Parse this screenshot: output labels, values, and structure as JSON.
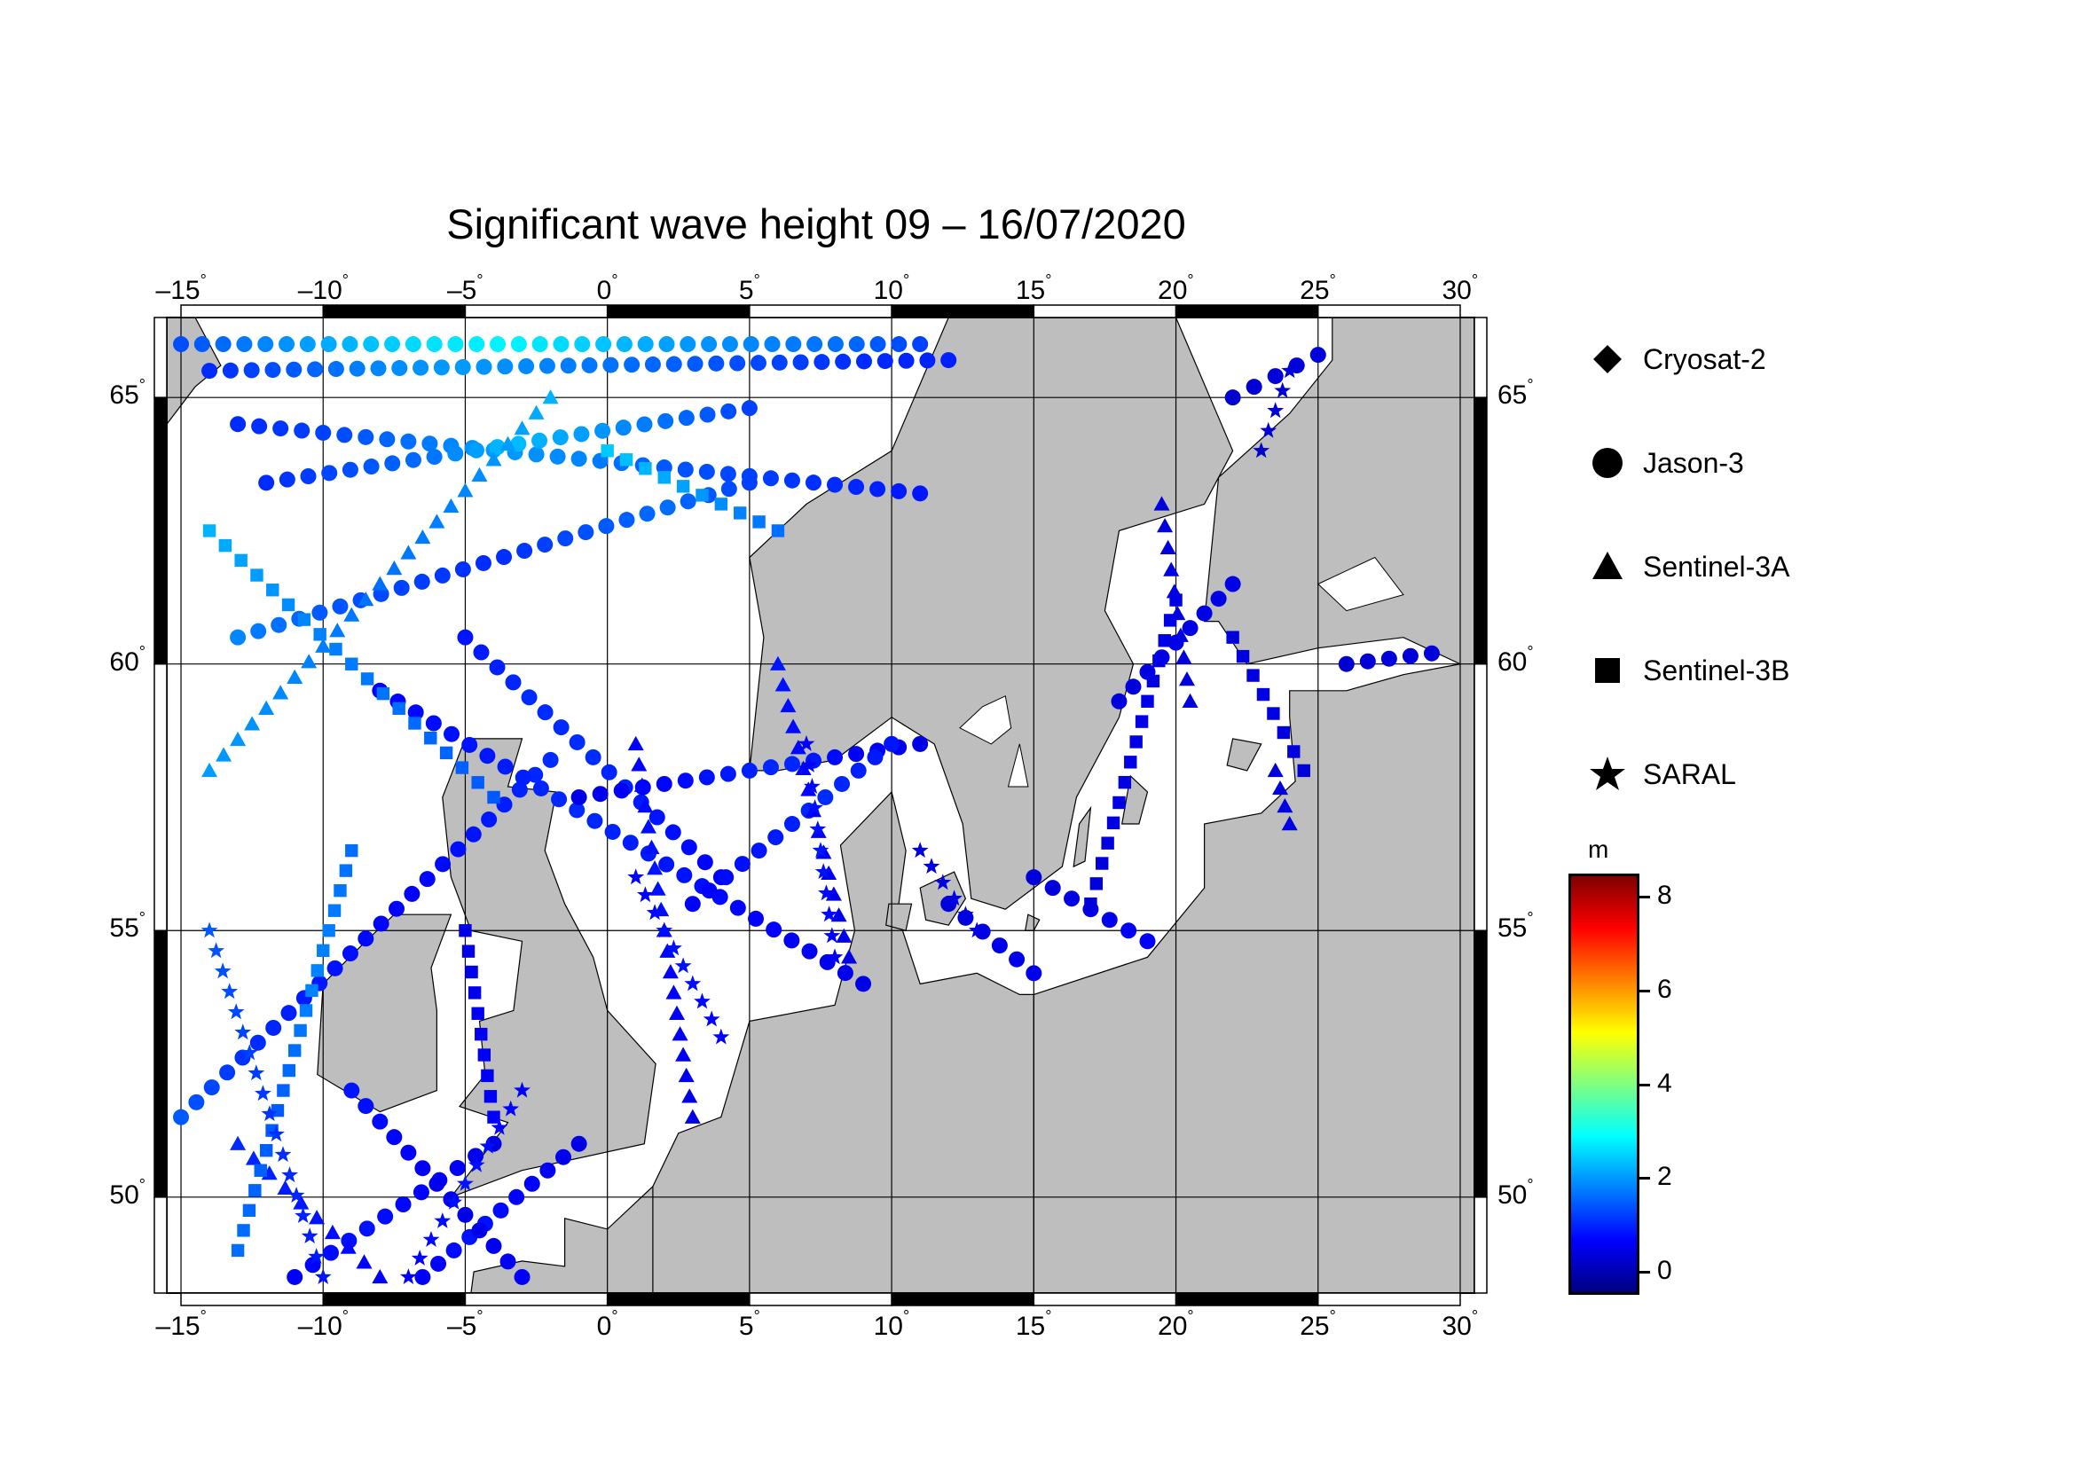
{
  "title": "Significant wave height 09 – 16/07/2020",
  "map": {
    "lon_range": [
      -15.5,
      30.5
    ],
    "lat_range": [
      48.2,
      66.5
    ],
    "top_lon_ticks": [
      "–15",
      "–10",
      "–5",
      "0",
      "5",
      "10",
      "15",
      "20",
      "25",
      "30"
    ],
    "bottom_lon_ticks": [
      "–15",
      "–10",
      "–5",
      "0",
      "5",
      "10",
      "15",
      "20",
      "25",
      "30"
    ],
    "lat_ticks": [
      "65",
      "60",
      "55",
      "50"
    ],
    "land_color": "#bebebe",
    "sea_color": "#ffffff",
    "grid_color": "#000000"
  },
  "legend": {
    "items": [
      {
        "label": "Cryosat-2",
        "icon": "diamond-icon"
      },
      {
        "label": "Jason-3",
        "icon": "circle-icon"
      },
      {
        "label": "Sentinel-3A",
        "icon": "triangle-icon"
      },
      {
        "label": "Sentinel-3B",
        "icon": "square-icon"
      },
      {
        "label": "SARAL",
        "icon": "star-icon"
      }
    ]
  },
  "colorbar": {
    "unit": "m",
    "range": [
      -0.5,
      8.5
    ],
    "ticks": [
      "8",
      "6",
      "4",
      "2",
      "0"
    ],
    "tick_values": [
      8,
      6,
      4,
      2,
      0
    ],
    "colors": [
      "#000080",
      "#0000ff",
      "#0080ff",
      "#00ffff",
      "#80ff80",
      "#ffff00",
      "#ff8000",
      "#ff0000",
      "#800000"
    ]
  },
  "chart_data": {
    "type": "scatter",
    "title": "Significant wave height 09 – 16/07/2020",
    "xlabel": "",
    "ylabel": "",
    "x_range": [
      -15.5,
      30.5
    ],
    "y_range": [
      48.2,
      66.5
    ],
    "value_unit": "m",
    "series": [
      {
        "name": "Jason-3",
        "marker": "circle",
        "tracks": [
          {
            "from": [
              -15,
              66
            ],
            "to": [
              11,
              66
            ],
            "hs": [
              1.3,
              1.8,
              2.2,
              2.6,
              2.8,
              2.4,
              2.0,
              1.8,
              1.6,
              1.2
            ]
          },
          {
            "from": [
              -14,
              65.5
            ],
            "to": [
              12,
              65.7
            ],
            "hs": [
              1.0,
              1.4,
              1.8,
              2.0,
              1.8,
              1.6,
              1.4,
              1.2,
              1.0,
              0.9
            ]
          },
          {
            "from": [
              -13,
              64.5
            ],
            "to": [
              11,
              63.2
            ],
            "hs": [
              1.0,
              1.2,
              1.6,
              2.0,
              1.8,
              1.4,
              1.2,
              1.0,
              0.8
            ]
          },
          {
            "from": [
              -12,
              63.4
            ],
            "to": [
              5,
              64.8
            ],
            "hs": [
              1.0,
              1.3,
              1.6,
              2.3,
              2.0,
              1.6,
              1.2
            ]
          },
          {
            "from": [
              -13,
              60.5
            ],
            "to": [
              5,
              63.4
            ],
            "hs": [
              1.8,
              1.4,
              1.2,
              1.0,
              1.3,
              1.6,
              1.2
            ]
          },
          {
            "from": [
              -15,
              51.5
            ],
            "to": [
              -2,
              58.2
            ],
            "hs": [
              1.4,
              1.0,
              0.8,
              0.6,
              0.8,
              1.0
            ]
          },
          {
            "from": [
              -8,
              59.5
            ],
            "to": [
              9,
              54
            ],
            "hs": [
              0.6,
              0.8,
              1.0,
              0.8,
              0.6,
              0.4
            ]
          },
          {
            "from": [
              -5,
              60.5
            ],
            "to": [
              4,
              56
            ],
            "hs": [
              0.8,
              1.0,
              1.0,
              0.8,
              0.6
            ]
          },
          {
            "from": [
              -1,
              57.5
            ],
            "to": [
              11,
              58.5
            ],
            "hs": [
              0.4,
              0.6,
              0.8,
              1.0,
              0.6,
              0.4
            ]
          },
          {
            "from": [
              -11,
              48.5
            ],
            "to": [
              -4,
              51
            ],
            "hs": [
              0.6,
              0.8,
              0.6,
              0.4
            ]
          },
          {
            "from": [
              -6.5,
              48.5
            ],
            "to": [
              -1,
              51
            ],
            "hs": [
              0.6,
              0.8,
              0.6,
              0.4
            ]
          },
          {
            "from": [
              -9,
              52
            ],
            "to": [
              -3,
              48.5
            ],
            "hs": [
              0.8,
              0.6,
              0.4,
              0.6
            ]
          },
          {
            "from": [
              3,
              55.5
            ],
            "to": [
              10,
              58.5
            ],
            "hs": [
              0.6,
              0.8,
              1.0,
              0.8
            ]
          },
          {
            "from": [
              12,
              55.5
            ],
            "to": [
              15,
              54.2
            ],
            "hs": [
              0.3,
              0.4,
              0.5
            ]
          },
          {
            "from": [
              15,
              56
            ],
            "to": [
              19,
              54.8
            ],
            "hs": [
              0.3,
              0.4,
              0.6
            ]
          },
          {
            "from": [
              18,
              59.3
            ],
            "to": [
              22,
              61.5
            ],
            "hs": [
              0.3,
              0.4,
              0.4
            ]
          },
          {
            "from": [
              22,
              65
            ],
            "to": [
              25,
              65.8
            ],
            "hs": [
              0.2,
              0.3,
              0.3
            ]
          },
          {
            "from": [
              26,
              60
            ],
            "to": [
              29,
              60.2
            ],
            "hs": [
              0.2,
              0.3,
              0.3
            ]
          }
        ]
      },
      {
        "name": "Sentinel-3A",
        "marker": "triangle",
        "tracks": [
          {
            "from": [
              -14,
              58
            ],
            "to": [
              -2,
              65
            ],
            "hs": [
              2.0,
              1.8,
              1.6,
              1.8,
              2.2
            ]
          },
          {
            "from": [
              1,
              58.5
            ],
            "to": [
              3,
              51.5
            ],
            "hs": [
              0.6,
              0.8,
              0.6,
              0.4
            ]
          },
          {
            "from": [
              -13,
              51
            ],
            "to": [
              -8,
              48.5
            ],
            "hs": [
              1.0,
              0.8,
              0.6
            ]
          },
          {
            "from": [
              6,
              60
            ],
            "to": [
              8.5,
              54.5
            ],
            "hs": [
              0.8,
              0.6,
              0.4
            ]
          },
          {
            "from": [
              19.5,
              63
            ],
            "to": [
              20.5,
              59.3
            ],
            "hs": [
              0.3,
              0.4,
              0.3
            ]
          },
          {
            "from": [
              23.5,
              58
            ],
            "to": [
              24,
              57
            ],
            "hs": [
              0.3,
              0.4
            ]
          }
        ]
      },
      {
        "name": "Sentinel-3B",
        "marker": "square",
        "tracks": [
          {
            "from": [
              -14,
              62.5
            ],
            "to": [
              -4,
              57.5
            ],
            "hs": [
              2.2,
              1.8,
              1.6,
              1.4
            ]
          },
          {
            "from": [
              -13,
              49
            ],
            "to": [
              -9,
              56.5
            ],
            "hs": [
              1.6,
              1.4,
              1.8,
              1.6
            ]
          },
          {
            "from": [
              0,
              64
            ],
            "to": [
              6,
              62.5
            ],
            "hs": [
              2.4,
              2.0,
              1.6
            ]
          },
          {
            "from": [
              -5,
              55
            ],
            "to": [
              -4,
              51.5
            ],
            "hs": [
              0.4,
              0.5,
              0.6
            ]
          },
          {
            "from": [
              17,
              55.5
            ],
            "to": [
              20,
              61.2
            ],
            "hs": [
              0.3,
              0.4,
              0.4
            ]
          },
          {
            "from": [
              22,
              60.5
            ],
            "to": [
              24.5,
              58
            ],
            "hs": [
              0.3,
              0.4,
              0.3
            ]
          }
        ]
      },
      {
        "name": "SARAL",
        "marker": "star",
        "tracks": [
          {
            "from": [
              -10,
              48.5
            ],
            "to": [
              -14,
              55
            ],
            "hs": [
              0.8,
              1.0,
              1.2,
              1.4
            ]
          },
          {
            "from": [
              -7,
              48.5
            ],
            "to": [
              -3,
              52
            ],
            "hs": [
              0.6,
              0.8,
              0.6
            ]
          },
          {
            "from": [
              1,
              56
            ],
            "to": [
              4,
              53
            ],
            "hs": [
              0.6,
              0.8,
              0.6
            ]
          },
          {
            "from": [
              7,
              58.5
            ],
            "to": [
              8,
              54.5
            ],
            "hs": [
              0.6,
              0.8,
              0.6
            ]
          },
          {
            "from": [
              11,
              56.5
            ],
            "to": [
              13,
              55
            ],
            "hs": [
              0.3,
              0.4
            ]
          },
          {
            "from": [
              23,
              64
            ],
            "to": [
              24,
              65.5
            ],
            "hs": [
              0.2,
              0.3
            ]
          }
        ]
      }
    ]
  }
}
